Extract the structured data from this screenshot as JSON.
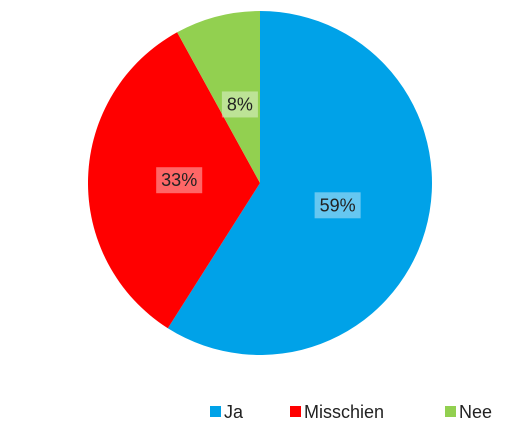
{
  "chart_data": {
    "type": "pie",
    "categories": [
      "Ja",
      "Misschien",
      "Nee"
    ],
    "values": [
      59,
      33,
      8
    ],
    "value_labels": [
      "59%",
      "33%",
      "8%"
    ],
    "colors": [
      "#00a2e8",
      "#ff0000",
      "#92d050"
    ],
    "legend": "bottom"
  }
}
